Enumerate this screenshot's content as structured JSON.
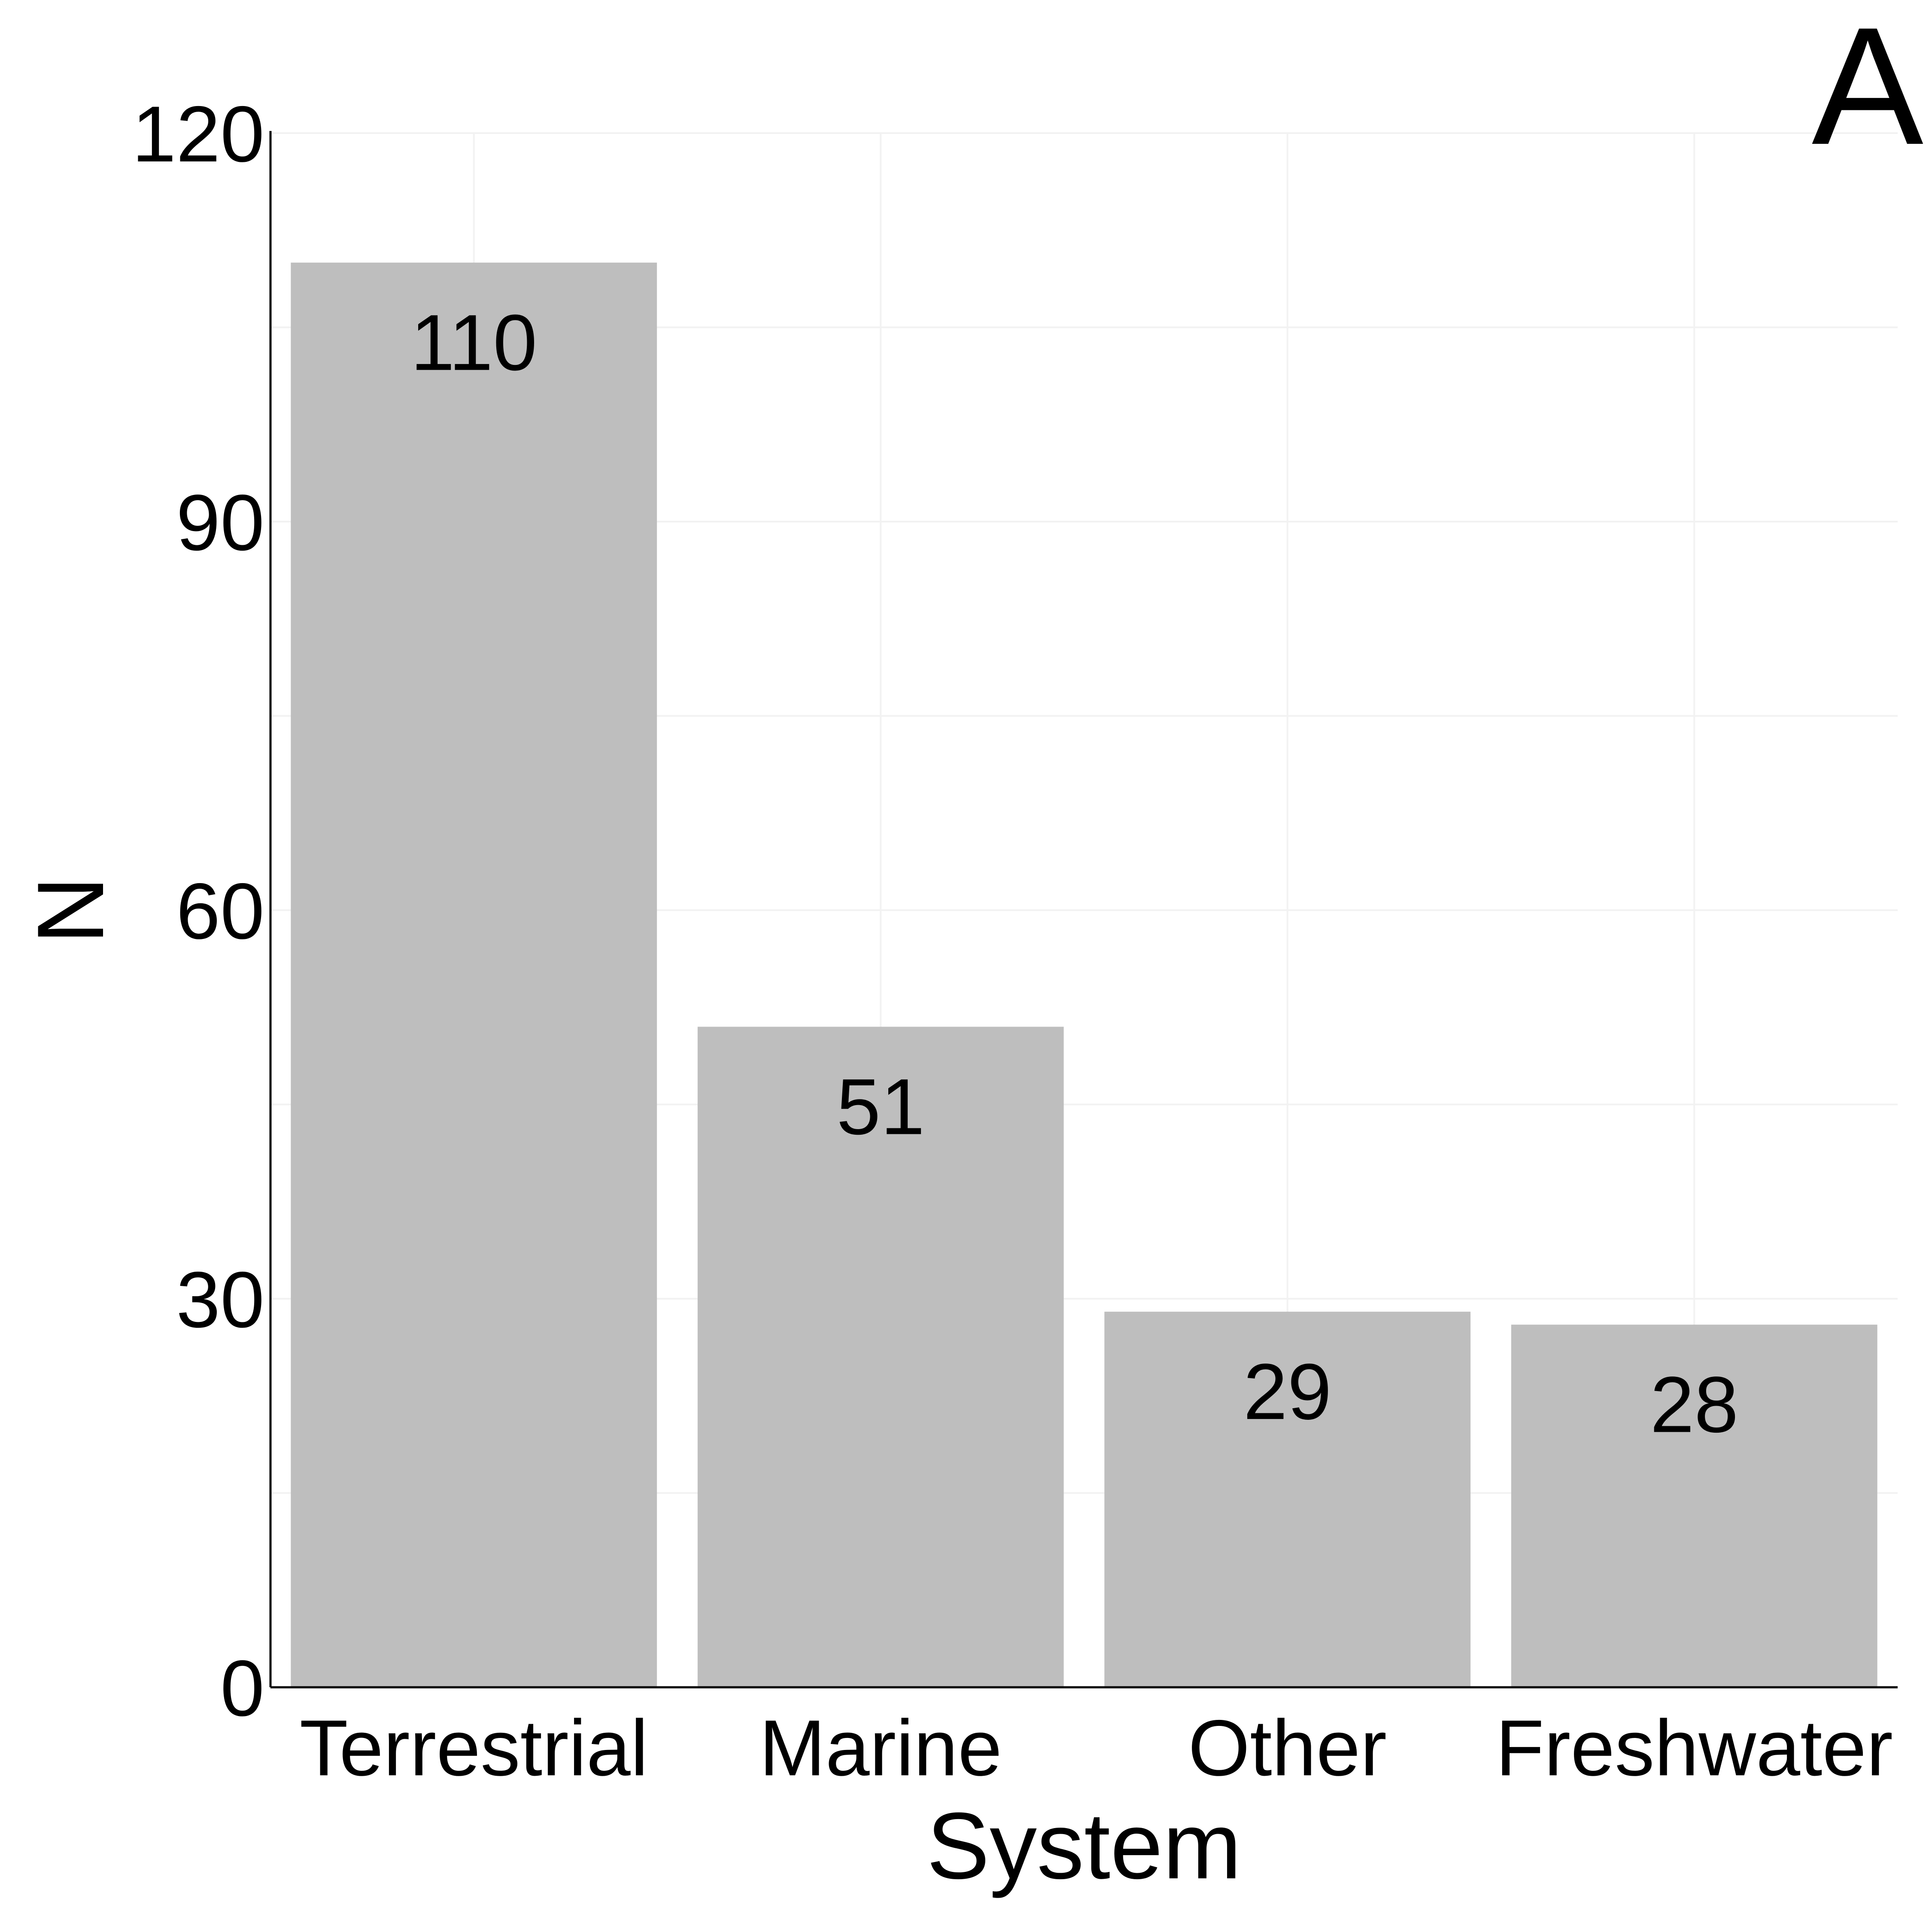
{
  "panel_label": "A",
  "chart_data": {
    "type": "bar",
    "categories": [
      "Terrestrial",
      "Marine",
      "Other",
      "Freshwater"
    ],
    "values": [
      110,
      51,
      29,
      28
    ],
    "data_labels": [
      "110",
      "51",
      "29",
      "28"
    ],
    "xlabel": "System",
    "ylabel": "N",
    "ylim": [
      0,
      120
    ],
    "yticks": [
      0,
      30,
      60,
      90,
      120
    ],
    "ytick_labels": [
      "0",
      "30",
      "60",
      "90",
      "120"
    ],
    "grid": true,
    "legend": "none",
    "bar_color": "#bebebe",
    "grid_color": "#f2f2f2",
    "axis_color": "#000000"
  }
}
